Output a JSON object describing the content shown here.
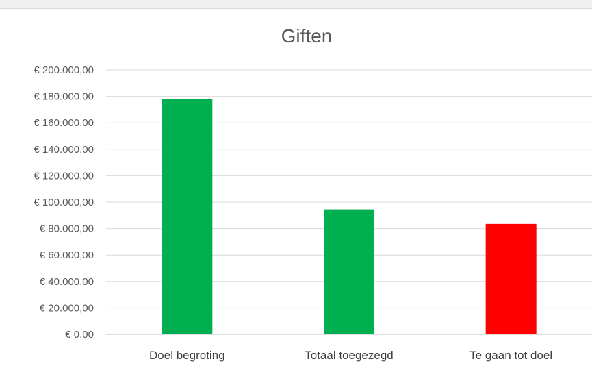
{
  "colors": {
    "green": "#00b050",
    "red": "#ff0000"
  },
  "chart_data": {
    "type": "bar",
    "title": "Giften",
    "categories": [
      "Doel begroting",
      "Totaal toegezegd",
      "Te gaan tot doel"
    ],
    "values": [
      178000,
      94500,
      83500
    ],
    "bar_colors": [
      "#00b050",
      "#00b050",
      "#ff0000"
    ],
    "ylim": [
      0,
      200000
    ],
    "yticks": [
      0,
      20000,
      40000,
      60000,
      80000,
      100000,
      120000,
      140000,
      160000,
      180000,
      200000
    ],
    "ytick_labels": [
      "€ 0,00",
      "€ 20.000,00",
      "€ 40.000,00",
      "€ 60.000,00",
      "€ 80.000,00",
      "€ 100.000,00",
      "€ 120.000,00",
      "€ 140.000,00",
      "€ 160.000,00",
      "€ 180.000,00",
      "€ 200.000,00"
    ],
    "xlabel": "",
    "ylabel": "",
    "grid": true,
    "legend": "none"
  }
}
